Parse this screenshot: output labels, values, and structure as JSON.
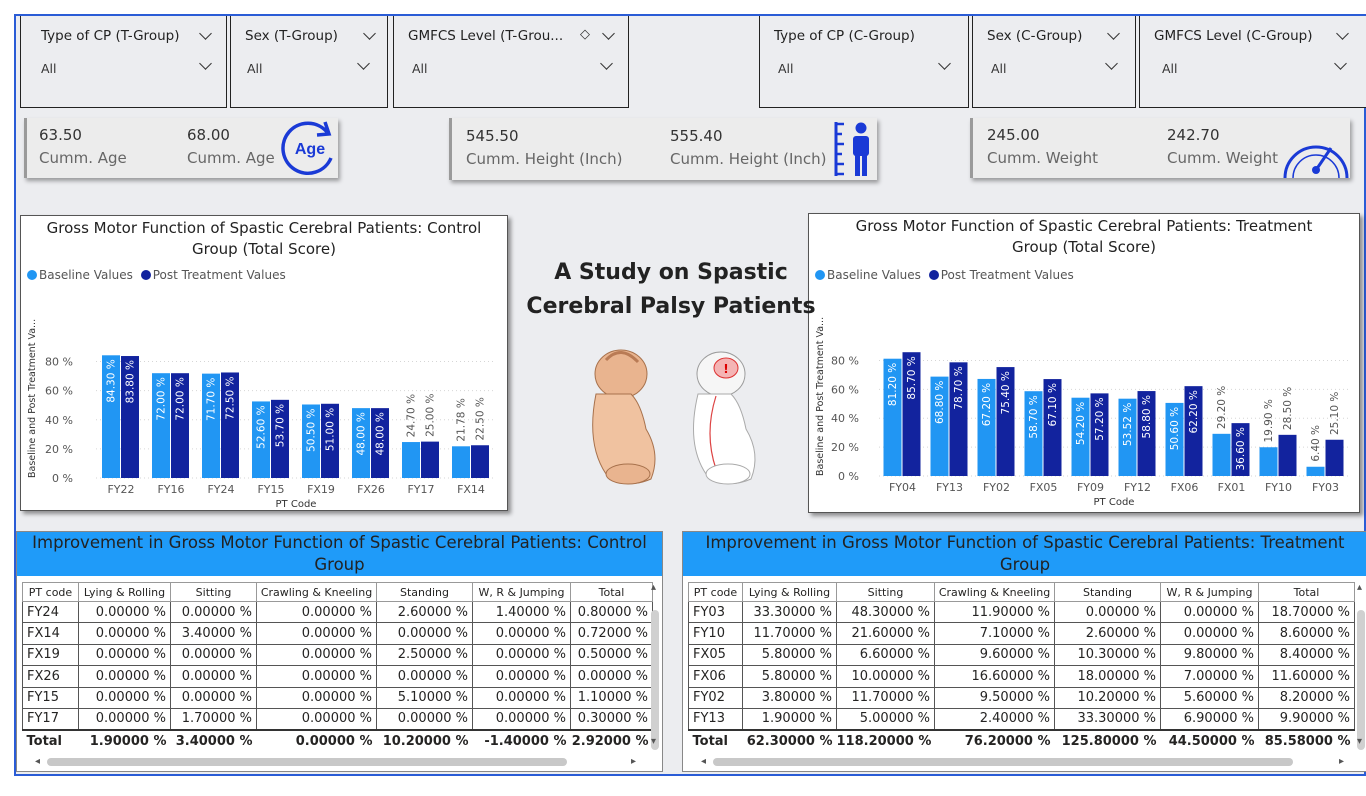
{
  "slicers_t": [
    {
      "title": "Type of CP (T-Group)",
      "value": "All"
    },
    {
      "title": "Sex (T-Group)",
      "value": "All"
    },
    {
      "title": "GMFCS Level (T-Grou...",
      "value": "All"
    }
  ],
  "slicers_c": [
    {
      "title": "Type of CP (C-Group)",
      "value": "All"
    },
    {
      "title": "Sex (C-Group)",
      "value": "All"
    },
    {
      "title": "GMFCS Level (C-Group)",
      "value": "All"
    }
  ],
  "kpi": {
    "age": {
      "v1": "63.50",
      "l1": "Cumm. Age",
      "v2": "68.00",
      "l2": "Cumm. Age",
      "icon_text": "Age"
    },
    "height": {
      "v1": "545.50",
      "l1": "Cumm. Height (Inch)",
      "v2": "555.40",
      "l2": "Cumm. Height (Inch)"
    },
    "weight": {
      "v1": "245.00",
      "l1": "Cumm. Weight",
      "v2": "242.70",
      "l2": "Cumm. Weight"
    }
  },
  "center_title": "A Study on Spastic Cerebral Palsy Patients",
  "colors": {
    "baseline": "#2196f3",
    "post": "#12239e",
    "header": "#1f9bf9"
  },
  "chart_data": [
    {
      "type": "bar",
      "title_line1": "Gross Motor Function of Spastic Cerebral Patients: Control",
      "title_line2": "Group (Total Score)",
      "legend": [
        "Baseline Values",
        "Post Treatment Values"
      ],
      "xlabel": "PT Code",
      "ylabel": "Baseline and Post Treatment Va...",
      "yticks": [
        "0 %",
        "20 %",
        "40 %",
        "60 %",
        "80 %"
      ],
      "ylim": [
        0,
        90
      ],
      "categories": [
        "FY22",
        "FY16",
        "FY24",
        "FY15",
        "FX19",
        "FX26",
        "FY17",
        "FX14"
      ],
      "series": [
        {
          "name": "Baseline Values",
          "values": [
            84.3,
            72.0,
            71.7,
            52.6,
            50.5,
            48.0,
            24.7,
            21.78
          ],
          "labels": [
            "84.30 %",
            "72.00 %",
            "71.70 %",
            "52.60 %",
            "50.50 %",
            "48.00 %",
            "24.70 %",
            "21.78 %"
          ]
        },
        {
          "name": "Post Treatment Values",
          "values": [
            83.8,
            72.0,
            72.5,
            53.7,
            51.0,
            48.0,
            25.0,
            22.5
          ],
          "labels": [
            "83.80 %",
            "72.00 %",
            "72.50 %",
            "53.70 %",
            "51.00 %",
            "48.00 %",
            "25.00 %",
            "22.50 %"
          ]
        }
      ]
    },
    {
      "type": "bar",
      "title_line1": "Gross Motor Function of Spastic Cerebral Patients: Treatment",
      "title_line2": "Group (Total Score)",
      "legend": [
        "Baseline Values",
        "Post Treatment Values"
      ],
      "xlabel": "PT Code",
      "ylabel": "Baseline and Post Treatment Va...",
      "yticks": [
        "0 %",
        "20 %",
        "40 %",
        "60 %",
        "80 %"
      ],
      "ylim": [
        0,
        90
      ],
      "categories": [
        "FY04",
        "FY13",
        "FY02",
        "FX05",
        "FY09",
        "FY12",
        "FX06",
        "FX01",
        "FY10",
        "FY03"
      ],
      "series": [
        {
          "name": "Baseline Values",
          "values": [
            81.2,
            68.8,
            67.2,
            58.7,
            54.2,
            53.52,
            50.6,
            29.2,
            19.9,
            6.4
          ],
          "labels": [
            "81.20 %",
            "68.80 %",
            "67.20 %",
            "58.70 %",
            "54.20 %",
            "53.52 %",
            "50.60 %",
            "29.20 %",
            "19.90 %",
            "6.40 %"
          ]
        },
        {
          "name": "Post Treatment Values",
          "values": [
            85.7,
            78.7,
            75.4,
            67.1,
            57.2,
            58.8,
            62.2,
            36.6,
            28.5,
            25.1
          ],
          "labels": [
            "85.70 %",
            "78.70 %",
            "75.40 %",
            "67.10 %",
            "57.20 %",
            "58.80 %",
            "62.20 %",
            "36.60 %",
            "28.50 %",
            "25.10 %"
          ]
        }
      ]
    }
  ],
  "table_control": {
    "title": "Improvement in Gross Motor Function of Spastic Cerebral Patients: Control Group",
    "columns": [
      "PT code",
      "Lying & Rolling",
      "Sitting",
      "Crawling & Kneeling",
      "Standing",
      "W, R & Jumping",
      "Total"
    ],
    "rows": [
      [
        "FY24",
        "0.00000 %",
        "0.00000 %",
        "0.00000 %",
        "2.60000 %",
        "1.40000 %",
        "0.80000 %"
      ],
      [
        "FX14",
        "0.00000 %",
        "3.40000 %",
        "0.00000 %",
        "0.00000 %",
        "0.00000 %",
        "0.72000 %"
      ],
      [
        "FX19",
        "0.00000 %",
        "0.00000 %",
        "0.00000 %",
        "2.50000 %",
        "0.00000 %",
        "0.50000 %"
      ],
      [
        "FX26",
        "0.00000 %",
        "0.00000 %",
        "0.00000 %",
        "0.00000 %",
        "0.00000 %",
        "0.00000 %"
      ],
      [
        "FY15",
        "0.00000 %",
        "0.00000 %",
        "0.00000 %",
        "5.10000 %",
        "0.00000 %",
        "1.10000 %"
      ],
      [
        "FY17",
        "0.00000 %",
        "1.70000 %",
        "0.00000 %",
        "0.00000 %",
        "0.00000 %",
        "0.30000 %"
      ]
    ],
    "total": [
      "Total",
      "1.90000 %",
      "3.40000 %",
      "0.00000 %",
      "10.20000 %",
      "-1.40000 %",
      "2.92000 %"
    ]
  },
  "table_treatment": {
    "title": "Improvement in Gross Motor Function of Spastic Cerebral Patients: Treatment Group",
    "columns": [
      "PT code",
      "Lying & Rolling",
      "Sitting",
      "Crawling & Kneeling",
      "Standing",
      "W, R & Jumping",
      "Total"
    ],
    "rows": [
      [
        "FY03",
        "33.30000 %",
        "48.30000 %",
        "11.90000 %",
        "0.00000 %",
        "0.00000 %",
        "18.70000 %"
      ],
      [
        "FY10",
        "11.70000 %",
        "21.60000 %",
        "7.10000 %",
        "2.60000 %",
        "0.00000 %",
        "8.60000 %"
      ],
      [
        "FX05",
        "5.80000 %",
        "6.60000 %",
        "9.60000 %",
        "10.30000 %",
        "9.80000 %",
        "8.40000 %"
      ],
      [
        "FX06",
        "5.80000 %",
        "10.00000 %",
        "16.60000 %",
        "18.00000 %",
        "7.00000 %",
        "11.60000 %"
      ],
      [
        "FY02",
        "3.80000 %",
        "11.70000 %",
        "9.50000 %",
        "10.20000 %",
        "5.60000 %",
        "8.20000 %"
      ],
      [
        "FY13",
        "1.90000 %",
        "5.00000 %",
        "2.40000 %",
        "33.30000 %",
        "6.90000 %",
        "9.90000 %"
      ]
    ],
    "total": [
      "Total",
      "62.30000 %",
      "118.20000 %",
      "76.20000 %",
      "125.80000 %",
      "44.50000 %",
      "85.58000 %"
    ]
  }
}
